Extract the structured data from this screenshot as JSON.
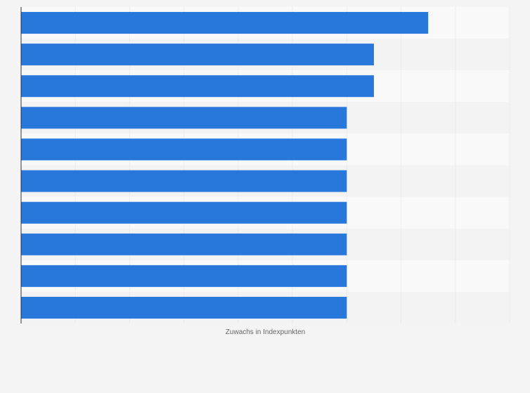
{
  "chart_data": {
    "type": "bar",
    "orientation": "horizontal",
    "title": "",
    "xlabel": "Zuwachs in Indexpunkten",
    "ylabel": "",
    "categories": [
      "",
      "",
      "",
      "",
      "",
      "",
      "",
      "",
      "",
      ""
    ],
    "values": [
      7.5,
      6.5,
      6.5,
      6,
      6,
      6,
      6,
      6,
      6,
      6
    ],
    "xlim": [
      0,
      9
    ],
    "grid": true,
    "legend": "none",
    "colors": {
      "bar": "#2878dc",
      "band_light": "#f9f9f9",
      "band_dark": "#f3f3f3",
      "background": "#f4f4f4",
      "grid": "#e2e2e2",
      "axis": "#333333"
    }
  }
}
